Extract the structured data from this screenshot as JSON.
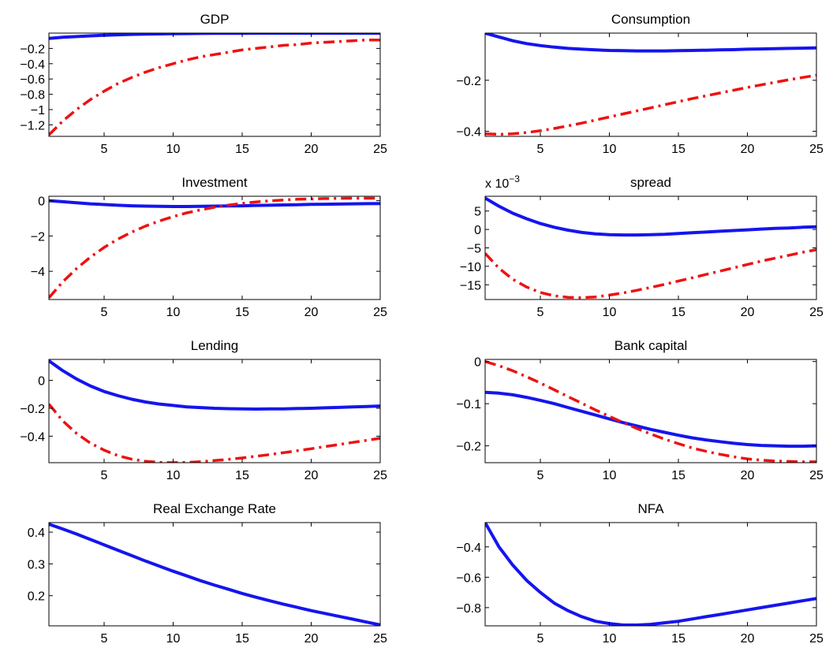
{
  "chart_data": [
    {
      "type": "line",
      "title": "GDP",
      "xlim": [
        1,
        25
      ],
      "ylim": [
        -1.35,
        0
      ],
      "xticks": [
        5,
        10,
        15,
        20,
        25
      ],
      "yticks": [
        -1.2,
        -1,
        -0.8,
        -0.6,
        -0.4,
        -0.2
      ],
      "ytick_labels": [
        "−1.2",
        "−1",
        "−0.8",
        "−0.6",
        "−0.4",
        "−0.2"
      ],
      "series": [
        {
          "color": "#1515ee",
          "style": "solid",
          "x": [
            1,
            2,
            3,
            4,
            5,
            6,
            7,
            8,
            9,
            10,
            11,
            12,
            13,
            14,
            15,
            16,
            17,
            18,
            19,
            20,
            21,
            22,
            23,
            24,
            25
          ],
          "y": [
            -0.07,
            -0.055,
            -0.045,
            -0.036,
            -0.028,
            -0.022,
            -0.017,
            -0.013,
            -0.01,
            -0.008,
            -0.006,
            -0.004,
            -0.003,
            -0.002,
            -0.002,
            -0.001,
            -0.001,
            -0.001,
            -0.001,
            -0.001,
            -0.001,
            -0.001,
            -0.001,
            -0.001,
            -0.001
          ]
        },
        {
          "color": "#ee1111",
          "style": "dashdot",
          "x": [
            1,
            2,
            3,
            4,
            5,
            6,
            7,
            8,
            9,
            10,
            11,
            12,
            13,
            14,
            15,
            16,
            17,
            18,
            19,
            20,
            21,
            22,
            23,
            24,
            25
          ],
          "y": [
            -1.33,
            -1.15,
            -1.0,
            -0.87,
            -0.76,
            -0.66,
            -0.58,
            -0.51,
            -0.45,
            -0.4,
            -0.35,
            -0.31,
            -0.28,
            -0.25,
            -0.22,
            -0.2,
            -0.18,
            -0.16,
            -0.15,
            -0.13,
            -0.12,
            -0.11,
            -0.1,
            -0.09,
            -0.09
          ]
        }
      ]
    },
    {
      "type": "line",
      "title": "Consumption",
      "xlim": [
        1,
        25
      ],
      "ylim": [
        -0.42,
        -0.015
      ],
      "xticks": [
        5,
        10,
        15,
        20,
        25
      ],
      "yticks": [
        -0.4,
        -0.2
      ],
      "ytick_labels": [
        "−0.4",
        "−0.2"
      ],
      "series": [
        {
          "color": "#1515ee",
          "style": "solid",
          "x": [
            1,
            2,
            3,
            4,
            5,
            6,
            7,
            8,
            9,
            10,
            11,
            12,
            13,
            14,
            15,
            16,
            17,
            18,
            19,
            20,
            21,
            22,
            23,
            24,
            25
          ],
          "y": [
            -0.015,
            -0.03,
            -0.045,
            -0.056,
            -0.064,
            -0.07,
            -0.075,
            -0.078,
            -0.081,
            -0.083,
            -0.084,
            -0.085,
            -0.085,
            -0.085,
            -0.084,
            -0.083,
            -0.082,
            -0.081,
            -0.08,
            -0.078,
            -0.077,
            -0.076,
            -0.075,
            -0.074,
            -0.073
          ]
        },
        {
          "color": "#ee1111",
          "style": "dashdot",
          "x": [
            1,
            2,
            3,
            4,
            5,
            6,
            7,
            8,
            9,
            10,
            11,
            12,
            13,
            14,
            15,
            16,
            17,
            18,
            19,
            20,
            21,
            22,
            23,
            24,
            25
          ],
          "y": [
            -0.41,
            -0.412,
            -0.41,
            -0.405,
            -0.398,
            -0.389,
            -0.379,
            -0.368,
            -0.356,
            -0.344,
            -0.332,
            -0.32,
            -0.308,
            -0.296,
            -0.284,
            -0.272,
            -0.261,
            -0.25,
            -0.239,
            -0.228,
            -0.218,
            -0.208,
            -0.198,
            -0.189,
            -0.18
          ]
        }
      ]
    },
    {
      "type": "line",
      "title": "Investment",
      "xlim": [
        1,
        25
      ],
      "ylim": [
        -5.6,
        0.25
      ],
      "xticks": [
        5,
        10,
        15,
        20,
        25
      ],
      "yticks": [
        -4,
        -2,
        0
      ],
      "ytick_labels": [
        "−4",
        "−2",
        "0"
      ],
      "series": [
        {
          "color": "#1515ee",
          "style": "solid",
          "x": [
            1,
            2,
            3,
            4,
            5,
            6,
            7,
            8,
            9,
            10,
            11,
            12,
            13,
            14,
            15,
            16,
            17,
            18,
            19,
            20,
            21,
            22,
            23,
            24,
            25
          ],
          "y": [
            0.0,
            -0.06,
            -0.12,
            -0.18,
            -0.22,
            -0.26,
            -0.29,
            -0.31,
            -0.32,
            -0.33,
            -0.33,
            -0.32,
            -0.31,
            -0.3,
            -0.29,
            -0.27,
            -0.26,
            -0.24,
            -0.23,
            -0.21,
            -0.2,
            -0.19,
            -0.18,
            -0.17,
            -0.16
          ]
        },
        {
          "color": "#ee1111",
          "style": "dashdot",
          "x": [
            1,
            2,
            3,
            4,
            5,
            6,
            7,
            8,
            9,
            10,
            11,
            12,
            13,
            14,
            15,
            16,
            17,
            18,
            19,
            20,
            21,
            22,
            23,
            24,
            25
          ],
          "y": [
            -5.5,
            -4.6,
            -3.85,
            -3.2,
            -2.65,
            -2.18,
            -1.78,
            -1.44,
            -1.15,
            -0.9,
            -0.69,
            -0.52,
            -0.37,
            -0.25,
            -0.15,
            -0.07,
            -0.01,
            0.04,
            0.08,
            0.1,
            0.12,
            0.13,
            0.14,
            0.14,
            0.14
          ]
        }
      ]
    },
    {
      "type": "line",
      "title": "spread",
      "scale_label": "x 10",
      "scale_exponent": "−3",
      "xlim": [
        1,
        25
      ],
      "ylim": [
        -19,
        9
      ],
      "xticks": [
        5,
        10,
        15,
        20,
        25
      ],
      "yticks": [
        -15,
        -10,
        -5,
        0,
        5
      ],
      "ytick_labels": [
        "−15",
        "−10",
        "−5",
        "0",
        "5"
      ],
      "series": [
        {
          "color": "#1515ee",
          "style": "solid",
          "x": [
            1,
            2,
            3,
            4,
            5,
            6,
            7,
            8,
            9,
            10,
            11,
            12,
            13,
            14,
            15,
            16,
            17,
            18,
            19,
            20,
            21,
            22,
            23,
            24,
            25
          ],
          "y": [
            8.5,
            6.3,
            4.4,
            2.9,
            1.6,
            0.6,
            -0.2,
            -0.8,
            -1.2,
            -1.4,
            -1.5,
            -1.5,
            -1.4,
            -1.3,
            -1.1,
            -0.9,
            -0.7,
            -0.5,
            -0.3,
            -0.1,
            0.1,
            0.3,
            0.4,
            0.6,
            0.7
          ]
        },
        {
          "color": "#ee1111",
          "style": "dashdot",
          "x": [
            1,
            2,
            3,
            4,
            5,
            6,
            7,
            8,
            9,
            10,
            11,
            12,
            13,
            14,
            15,
            16,
            17,
            18,
            19,
            20,
            21,
            22,
            23,
            24,
            25
          ],
          "y": [
            -6.5,
            -10.5,
            -13.5,
            -15.6,
            -17.1,
            -18.0,
            -18.4,
            -18.5,
            -18.3,
            -17.8,
            -17.2,
            -16.5,
            -15.7,
            -14.9,
            -14.0,
            -13.1,
            -12.2,
            -11.3,
            -10.4,
            -9.5,
            -8.6,
            -7.8,
            -7.0,
            -6.2,
            -5.5
          ]
        }
      ]
    },
    {
      "type": "line",
      "title": "Lending",
      "xlim": [
        1,
        25
      ],
      "ylim": [
        -0.59,
        0.15
      ],
      "xticks": [
        5,
        10,
        15,
        20,
        25
      ],
      "yticks": [
        -0.4,
        -0.2,
        0
      ],
      "ytick_labels": [
        "−0.4",
        "−0.2",
        "0"
      ],
      "series": [
        {
          "color": "#1515ee",
          "style": "solid",
          "x": [
            1,
            2,
            3,
            4,
            5,
            6,
            7,
            8,
            9,
            10,
            11,
            12,
            13,
            14,
            15,
            16,
            17,
            18,
            19,
            20,
            21,
            22,
            23,
            24,
            25
          ],
          "y": [
            0.14,
            0.07,
            0.01,
            -0.04,
            -0.08,
            -0.11,
            -0.135,
            -0.155,
            -0.17,
            -0.18,
            -0.19,
            -0.195,
            -0.2,
            -0.203,
            -0.205,
            -0.206,
            -0.205,
            -0.204,
            -0.202,
            -0.2,
            -0.197,
            -0.194,
            -0.19,
            -0.187,
            -0.184
          ]
        },
        {
          "color": "#ee1111",
          "style": "dashdot",
          "x": [
            1,
            2,
            3,
            4,
            5,
            6,
            7,
            8,
            9,
            10,
            11,
            12,
            13,
            14,
            15,
            16,
            17,
            18,
            19,
            20,
            21,
            22,
            23,
            24,
            25
          ],
          "y": [
            -0.17,
            -0.29,
            -0.38,
            -0.45,
            -0.5,
            -0.54,
            -0.565,
            -0.58,
            -0.588,
            -0.59,
            -0.588,
            -0.583,
            -0.575,
            -0.566,
            -0.556,
            -0.544,
            -0.532,
            -0.518,
            -0.504,
            -0.49,
            -0.475,
            -0.46,
            -0.445,
            -0.43,
            -0.415
          ]
        }
      ]
    },
    {
      "type": "line",
      "title": "Bank capital",
      "xlim": [
        1,
        25
      ],
      "ylim": [
        -0.24,
        0.005
      ],
      "xticks": [
        5,
        10,
        15,
        20,
        25
      ],
      "yticks": [
        -0.2,
        -0.1,
        0
      ],
      "ytick_labels": [
        "−0.2",
        "−0.1",
        "0"
      ],
      "series": [
        {
          "color": "#1515ee",
          "style": "solid",
          "x": [
            1,
            2,
            3,
            4,
            5,
            6,
            7,
            8,
            9,
            10,
            11,
            12,
            13,
            14,
            15,
            16,
            17,
            18,
            19,
            20,
            21,
            22,
            23,
            24,
            25
          ],
          "y": [
            -0.073,
            -0.075,
            -0.079,
            -0.085,
            -0.092,
            -0.1,
            -0.109,
            -0.118,
            -0.127,
            -0.136,
            -0.145,
            -0.153,
            -0.161,
            -0.168,
            -0.175,
            -0.181,
            -0.186,
            -0.19,
            -0.194,
            -0.197,
            -0.199,
            -0.2,
            -0.201,
            -0.201,
            -0.2
          ]
        },
        {
          "color": "#ee1111",
          "style": "dashdot",
          "x": [
            1,
            2,
            3,
            4,
            5,
            6,
            7,
            8,
            9,
            10,
            11,
            12,
            13,
            14,
            15,
            16,
            17,
            18,
            19,
            20,
            21,
            22,
            23,
            24,
            25
          ],
          "y": [
            0.0,
            -0.01,
            -0.022,
            -0.036,
            -0.051,
            -0.067,
            -0.083,
            -0.099,
            -0.115,
            -0.13,
            -0.145,
            -0.159,
            -0.172,
            -0.184,
            -0.195,
            -0.205,
            -0.213,
            -0.22,
            -0.226,
            -0.231,
            -0.234,
            -0.236,
            -0.237,
            -0.238,
            -0.238
          ]
        }
      ]
    },
    {
      "type": "line",
      "title": "Real Exchange Rate",
      "xlim": [
        1,
        25
      ],
      "ylim": [
        0.105,
        0.43
      ],
      "xticks": [
        5,
        10,
        15,
        20,
        25
      ],
      "yticks": [
        0.2,
        0.3,
        0.4
      ],
      "ytick_labels": [
        "0.2",
        "0.3",
        "0.4"
      ],
      "series": [
        {
          "color": "#1515ee",
          "style": "solid",
          "x": [
            1,
            2,
            3,
            4,
            5,
            6,
            7,
            8,
            9,
            10,
            11,
            12,
            13,
            14,
            15,
            16,
            17,
            18,
            19,
            20,
            21,
            22,
            23,
            24,
            25
          ],
          "y": [
            0.425,
            0.41,
            0.394,
            0.377,
            0.36,
            0.343,
            0.326,
            0.309,
            0.293,
            0.277,
            0.262,
            0.247,
            0.233,
            0.22,
            0.207,
            0.195,
            0.184,
            0.173,
            0.163,
            0.153,
            0.144,
            0.135,
            0.126,
            0.117,
            0.108
          ]
        }
      ]
    },
    {
      "type": "line",
      "title": "NFA",
      "xlim": [
        1,
        25
      ],
      "ylim": [
        -0.92,
        -0.24
      ],
      "xticks": [
        5,
        10,
        15,
        20,
        25
      ],
      "yticks": [
        -0.8,
        -0.6,
        -0.4
      ],
      "ytick_labels": [
        "−0.8",
        "−0.6",
        "−0.4"
      ],
      "series": [
        {
          "color": "#1515ee",
          "style": "solid",
          "x": [
            1,
            2,
            3,
            4,
            5,
            6,
            7,
            8,
            9,
            10,
            11,
            12,
            13,
            14,
            15,
            16,
            17,
            18,
            19,
            20,
            21,
            22,
            23,
            24,
            25
          ],
          "y": [
            -0.24,
            -0.4,
            -0.52,
            -0.62,
            -0.7,
            -0.77,
            -0.82,
            -0.86,
            -0.89,
            -0.905,
            -0.915,
            -0.915,
            -0.91,
            -0.9,
            -0.89,
            -0.875,
            -0.86,
            -0.845,
            -0.83,
            -0.815,
            -0.8,
            -0.785,
            -0.77,
            -0.755,
            -0.74
          ]
        }
      ]
    }
  ]
}
